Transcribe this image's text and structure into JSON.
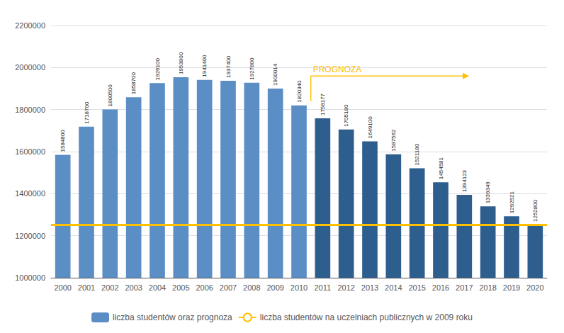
{
  "chart_data": {
    "type": "bar",
    "categories": [
      "2000",
      "2001",
      "2002",
      "2003",
      "2004",
      "2005",
      "2006",
      "2007",
      "2008",
      "2009",
      "2010",
      "2011",
      "2012",
      "2013",
      "2014",
      "2015",
      "2016",
      "2017",
      "2018",
      "2019",
      "2020"
    ],
    "series": [
      {
        "name": "liczba studentów oraz prognoza",
        "type": "bar",
        "color": "#5B8EC5",
        "colors": [
          "#5B8EC5",
          "#5B8EC5",
          "#5B8EC5",
          "#5B8EC5",
          "#5B8EC5",
          "#5B8EC5",
          "#5B8EC5",
          "#5B8EC5",
          "#5B8EC5",
          "#5B8EC5",
          "#5B8EC5",
          "#2E5E8E",
          "#2E5E8E",
          "#2E5E8E",
          "#2E5E8E",
          "#2E5E8E",
          "#2E5E8E",
          "#2E5E8E",
          "#2E5E8E",
          "#2E5E8E",
          "#2E5E8E"
        ],
        "values": [
          1584800,
          1718700,
          1800500,
          1858700,
          1926100,
          1953800,
          1941400,
          1937400,
          1927800,
          1900014,
          1820340,
          1758177,
          1705180,
          1649100,
          1587562,
          1521180,
          1454581,
          1394123,
          1339349,
          1292521,
          1252800
        ]
      },
      {
        "name": "liczba studentów na uczelniach publicznych w 2009 roku",
        "type": "hline",
        "color": "#FFC000",
        "value": 1253000
      }
    ],
    "annotations": [
      {
        "text": "PROGNOZA",
        "color": "#FFC000",
        "x": "2011",
        "y": 1960000
      }
    ],
    "ylim": [
      1000000,
      2200000
    ],
    "yticks": [
      1000000,
      1200000,
      1400000,
      1600000,
      1800000,
      2000000,
      2200000
    ],
    "grid": true,
    "data_labels": true,
    "legend": "bottom"
  }
}
